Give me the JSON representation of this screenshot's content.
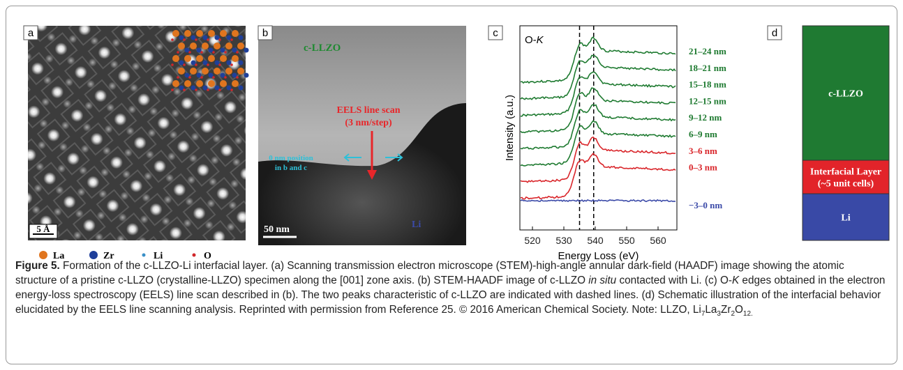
{
  "panel_a": {
    "label": "a",
    "scale_bar": "5 Å",
    "legend": [
      {
        "name": "La",
        "color": "#e0751f"
      },
      {
        "name": "Zr",
        "color": "#1f3f9a"
      },
      {
        "name": "Li",
        "color": "#3a8fc7"
      },
      {
        "name": "O",
        "color": "#d0262a"
      }
    ]
  },
  "panel_b": {
    "label": "b",
    "phase_label": "c-LLZO",
    "scan_label": [
      "EELS line scan",
      "(3 nm/step)"
    ],
    "position_label": [
      "0 nm position",
      "in b and c"
    ],
    "scale_bar": "50 nm",
    "li_label": "Li"
  },
  "panel_c": {
    "label": "c",
    "type": "line",
    "title": [
      "O-",
      "K"
    ],
    "xlabel": "Energy Loss (eV)",
    "ylabel": "Intensity (a.u.)",
    "xlim": [
      516,
      566
    ],
    "xticks": [
      520,
      530,
      540,
      550,
      560
    ],
    "peaks": [
      535,
      539.5
    ],
    "series": [
      {
        "name": "21–24 nm",
        "color": "#1e7a30"
      },
      {
        "name": "18–21 nm",
        "color": "#1e7a30"
      },
      {
        "name": "15–18 nm",
        "color": "#1e7a30"
      },
      {
        "name": "12–15 nm",
        "color": "#1e7a30"
      },
      {
        "name": "9–12 nm",
        "color": "#1e7a30"
      },
      {
        "name": "6–9 nm",
        "color": "#1e7a30"
      },
      {
        "name": "3–6 nm",
        "color": "#d9252a"
      },
      {
        "name": "0–3 nm",
        "color": "#d9252a"
      },
      {
        "name": "−3–0 nm",
        "color": "#3b4aa8"
      }
    ]
  },
  "panel_d": {
    "label": "d",
    "layers": [
      {
        "text": [
          "c-LLZO"
        ],
        "color": "#1f7a32"
      },
      {
        "text": [
          "Interfacial Layer",
          "(~5 unit cells)"
        ],
        "color": "#e2242a"
      },
      {
        "text": [
          "Li"
        ],
        "color": "#3949a6"
      }
    ]
  },
  "caption": {
    "segments": [
      {
        "text": "Figure 5.",
        "style": "bold"
      },
      {
        "text": " Formation of the c-LLZO-Li interfacial layer. (a) Scanning transmission electron microscope (STEM)-high-angle annular dark-field (HAADF) image showing the atomic structure of a pristine c-LLZO (crystalline-LLZO) specimen along the [001] zone axis. (b) STEM-HAADF image of c-LLZO ",
        "style": "normal"
      },
      {
        "text": "in situ",
        "style": "italic"
      },
      {
        "text": " contacted with Li. (c) O-",
        "style": "normal"
      },
      {
        "text": "K",
        "style": "italic"
      },
      {
        "text": " edges obtained in the electron energy-loss spectroscopy (EELS) line scan described in (b). The two peaks characteristic of c-LLZO are indicated with dashed lines. (d) Schematic illustration of the interfacial behavior elucidated by the EELS line scanning analysis. Reprinted with permission from Reference 25. © 2016 American Chemical Society. Note: LLZO, Li",
        "style": "normal"
      },
      {
        "text": "7",
        "style": "sub"
      },
      {
        "text": "La",
        "style": "normal"
      },
      {
        "text": "3",
        "style": "sub"
      },
      {
        "text": "Zr",
        "style": "normal"
      },
      {
        "text": "2",
        "style": "sub"
      },
      {
        "text": "O",
        "style": "normal"
      },
      {
        "text": "12.",
        "style": "sub"
      }
    ]
  }
}
